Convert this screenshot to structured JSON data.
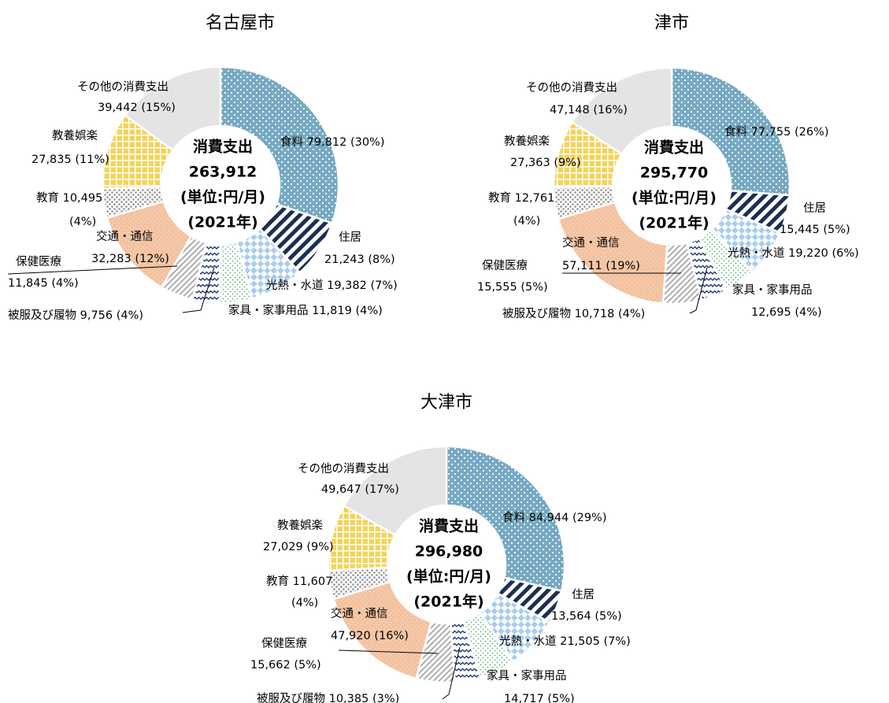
{
  "center_text": {
    "line1": "消費支出",
    "line3": "(単位:円/月)",
    "line4": "(2021年)"
  },
  "categories": [
    "食料",
    "住居",
    "光熱・水道",
    "家具・家事用品",
    "被服及び履物",
    "保健医療",
    "交通・通信",
    "教育",
    "教養娯楽",
    "その他の消費支出"
  ],
  "colors": {
    "food": "#76a9c2",
    "housing": "#1c2e55",
    "utilities": "#a9cdee",
    "furniture": "#c7e8d6",
    "clothing": "#1f3a7a",
    "health": "#a6a6a6",
    "transport": "#f3c2a0",
    "education": "#8f8f8f",
    "culture": "#f2d45a",
    "other": "#e4e4e4"
  },
  "chart_data": [
    {
      "type": "pie",
      "title": "名古屋市",
      "total": "263,912",
      "values": [
        79812,
        21243,
        19382,
        11819,
        9756,
        11845,
        32283,
        10495,
        27835,
        39442
      ],
      "labels": [
        [
          "食料 79,812 (30%)"
        ],
        [
          "住居",
          "21,243 (8%)"
        ],
        [
          "光熱・水道 19,382 (7%)"
        ],
        [
          "家具・家事用品 11,819 (4%)"
        ],
        [
          "被服及び履物 9,756 (4%)"
        ],
        [
          "保健医療",
          "11,845 (4%)"
        ],
        [
          "交通・通信",
          "32,283 (12%)"
        ],
        [
          "教育 10,495",
          "(4%)"
        ],
        [
          "教養娯楽",
          "27,835 (11%)"
        ],
        [
          "その他の消費支出",
          "39,442 (15%)"
        ]
      ]
    },
    {
      "type": "pie",
      "title": "津市",
      "total": "295,770",
      "values": [
        77755,
        15445,
        19220,
        12695,
        10718,
        15555,
        57111,
        12761,
        27363,
        47148
      ],
      "labels": [
        [
          "食料 77,755 (26%)"
        ],
        [
          "住居",
          "15,445 (5%)"
        ],
        [
          "光熱・水道 19,220 (6%)"
        ],
        [
          "家具・家事用品",
          "12,695 (4%)"
        ],
        [
          "被服及び履物 10,718 (4%)"
        ],
        [
          "保健医療",
          "15,555 (5%)"
        ],
        [
          "交通・通信",
          "57,111 (19%)"
        ],
        [
          "教育 12,761",
          "(4%)"
        ],
        [
          "教養娯楽",
          "27,363 (9%)"
        ],
        [
          "その他の消費支出",
          "47,148 (16%)"
        ]
      ]
    },
    {
      "type": "pie",
      "title": "大津市",
      "total": "296,980",
      "values": [
        84944,
        13564,
        21505,
        14717,
        10385,
        15662,
        47920,
        11607,
        27029,
        49647
      ],
      "labels": [
        [
          "食料 84,944 (29%)"
        ],
        [
          "住居",
          "13,564 (5%)"
        ],
        [
          "光熱・水道 21,505 (7%)"
        ],
        [
          "家具・家事用品",
          "14,717 (5%)"
        ],
        [
          "被服及び履物 10,385 (3%)"
        ],
        [
          "保健医療",
          "15,662 (5%)"
        ],
        [
          "交通・通信",
          "47,920 (16%)"
        ],
        [
          "教育 11,607",
          "(4%)"
        ],
        [
          "教養娯楽",
          "27,029 (9%)"
        ],
        [
          "その他の消費支出",
          "49,647 (17%)"
        ]
      ]
    }
  ]
}
